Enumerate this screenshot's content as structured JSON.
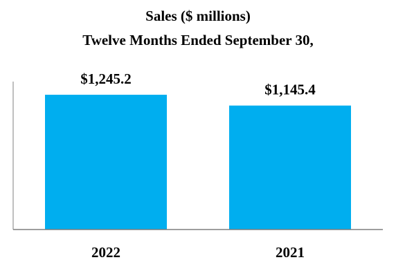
{
  "chart_data": {
    "type": "bar",
    "title": "Sales ($ millions)",
    "subtitle": "Twelve Months Ended September 30,",
    "categories": [
      "2022",
      "2021"
    ],
    "values": [
      1245.2,
      1145.4
    ],
    "data_labels": [
      "$1,245.2",
      "$1,145.4"
    ],
    "xlabel": "",
    "ylabel": "",
    "ylim": [
      0,
      1450
    ],
    "grid": false,
    "legend": "none",
    "colors": {
      "bar": "#00AEEF",
      "axis": "#7f7f7f",
      "text": "#000000"
    }
  }
}
